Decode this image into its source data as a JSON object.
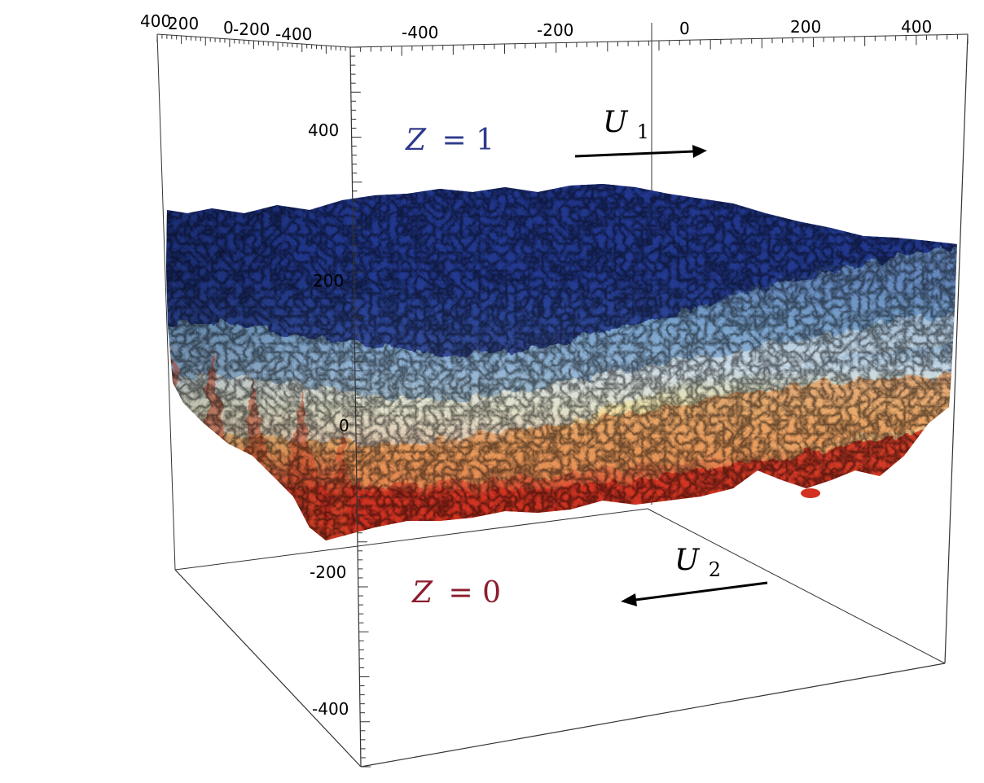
{
  "diagram": {
    "axis_top_back_labels": [
      "400",
      "200",
      "0",
      "-200",
      "-400"
    ],
    "axis_top_front_labels": [
      "-400",
      "-200",
      "0",
      "200",
      "400"
    ],
    "axis_vertical_labels": [
      "400",
      "200",
      "0",
      "-200",
      "-400"
    ],
    "upper_stream": {
      "label_var": "Z",
      "label_eq": "= 1",
      "velocity_var": "U",
      "velocity_sub": "1",
      "color": "#2e3a8c"
    },
    "lower_stream": {
      "label_var": "Z",
      "label_eq": "= 0",
      "velocity_var": "U",
      "velocity_sub": "2",
      "color": "#8b1c2e"
    },
    "colors": {
      "top_blue": "#22388f",
      "light_blue": "#8fb3d6",
      "cream": "#efe2a8",
      "orange": "#e0834a",
      "red": "#d3301f"
    }
  }
}
